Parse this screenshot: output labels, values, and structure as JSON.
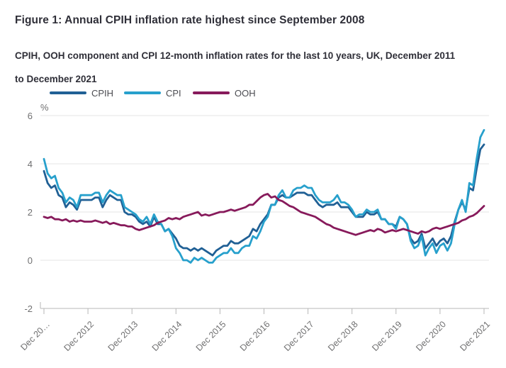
{
  "header": {
    "title": "Figure 1: Annual CPIH inflation rate highest since September 2008",
    "subtitle": "CPIH, OOH component and CPI 12-month inflation rates for the last 10 years, UK, December 2011 to December 2021"
  },
  "colors": {
    "cpih": "#206095",
    "cpi": "#27A0CC",
    "ooh": "#871A5B",
    "axis_text": "#707071",
    "gridline": "#e6e6e6",
    "axis_line": "#b7b7b7",
    "heading_text": "#2f2f38"
  },
  "chart_data": {
    "type": "line",
    "title": "Figure 1: Annual CPIH inflation rate highest since September 2008",
    "subtitle": "CPIH, OOH component and CPI 12-month inflation rates for the last 10 years, UK, December 2011 to December 2021",
    "unit_label": "%",
    "xlabel": "",
    "ylabel": "%",
    "ylim": [
      -2,
      6
    ],
    "y_ticks": [
      6,
      4,
      2,
      0,
      -2
    ],
    "grid": "horizontal",
    "legend_position": "top",
    "x_start": "Dec 2011",
    "x_end": "Dec 2021",
    "frequency": "monthly",
    "x_tick_labels": [
      "Dec 20…",
      "Dec 2012",
      "Dec 2013",
      "Dec 2014",
      "Dec 2015",
      "Dec 2016",
      "Dec 2017",
      "Dec 2018",
      "Dec 2019",
      "Dec 2020",
      "Dec 2021"
    ],
    "series": [
      {
        "name": "CPIH",
        "color": "#206095",
        "values": [
          3.7,
          3.2,
          3.0,
          3.1,
          2.7,
          2.6,
          2.2,
          2.4,
          2.3,
          2.1,
          2.5,
          2.5,
          2.5,
          2.5,
          2.6,
          2.6,
          2.2,
          2.5,
          2.7,
          2.6,
          2.5,
          2.5,
          2.0,
          1.9,
          1.9,
          1.8,
          1.6,
          1.5,
          1.6,
          1.4,
          1.8,
          1.5,
          1.5,
          1.2,
          1.3,
          1.1,
          0.9,
          0.6,
          0.5,
          0.5,
          0.4,
          0.5,
          0.4,
          0.5,
          0.4,
          0.3,
          0.2,
          0.4,
          0.5,
          0.6,
          0.6,
          0.8,
          0.7,
          0.7,
          0.8,
          0.9,
          1.0,
          1.3,
          1.2,
          1.5,
          1.7,
          1.9,
          2.3,
          2.3,
          2.6,
          2.7,
          2.6,
          2.6,
          2.7,
          2.8,
          2.8,
          2.8,
          2.7,
          2.7,
          2.5,
          2.3,
          2.2,
          2.3,
          2.3,
          2.3,
          2.4,
          2.2,
          2.2,
          2.2,
          2.0,
          1.8,
          1.8,
          1.8,
          2.0,
          1.9,
          1.9,
          2.0,
          1.7,
          1.7,
          1.5,
          1.5,
          1.4,
          1.8,
          1.7,
          1.5,
          0.9,
          0.7,
          0.8,
          1.1,
          0.5,
          0.7,
          0.9,
          0.6,
          0.8,
          0.9,
          0.7,
          1.0,
          1.6,
          2.1,
          2.4,
          2.1,
          3.0,
          2.9,
          3.8,
          4.6,
          4.8
        ]
      },
      {
        "name": "CPI",
        "color": "#27A0CC",
        "values": [
          4.2,
          3.6,
          3.4,
          3.5,
          3.0,
          2.8,
          2.4,
          2.6,
          2.5,
          2.2,
          2.7,
          2.7,
          2.7,
          2.7,
          2.8,
          2.8,
          2.4,
          2.7,
          2.9,
          2.8,
          2.7,
          2.7,
          2.2,
          2.1,
          2.0,
          1.9,
          1.7,
          1.6,
          1.8,
          1.5,
          1.9,
          1.6,
          1.5,
          1.2,
          1.3,
          1.0,
          0.5,
          0.3,
          0.0,
          0.0,
          -0.1,
          0.1,
          0.0,
          0.1,
          0.0,
          -0.1,
          -0.1,
          0.1,
          0.2,
          0.3,
          0.3,
          0.5,
          0.3,
          0.3,
          0.5,
          0.6,
          0.6,
          1.0,
          0.9,
          1.2,
          1.6,
          1.8,
          2.3,
          2.3,
          2.7,
          2.9,
          2.6,
          2.6,
          2.9,
          3.0,
          3.0,
          3.1,
          3.0,
          3.0,
          2.7,
          2.5,
          2.4,
          2.4,
          2.4,
          2.5,
          2.7,
          2.4,
          2.4,
          2.3,
          2.1,
          1.8,
          1.9,
          1.9,
          2.1,
          2.0,
          2.0,
          2.1,
          1.7,
          1.7,
          1.5,
          1.5,
          1.3,
          1.8,
          1.7,
          1.5,
          0.8,
          0.5,
          0.6,
          1.0,
          0.2,
          0.5,
          0.7,
          0.3,
          0.6,
          0.7,
          0.4,
          0.7,
          1.5,
          2.1,
          2.5,
          2.0,
          3.2,
          3.1,
          4.2,
          5.1,
          5.4
        ]
      },
      {
        "name": "OOH",
        "color": "#871A5B",
        "values": [
          1.8,
          1.75,
          1.8,
          1.7,
          1.7,
          1.65,
          1.7,
          1.6,
          1.65,
          1.6,
          1.65,
          1.6,
          1.6,
          1.6,
          1.65,
          1.6,
          1.55,
          1.6,
          1.5,
          1.55,
          1.5,
          1.45,
          1.45,
          1.4,
          1.4,
          1.3,
          1.25,
          1.3,
          1.35,
          1.4,
          1.45,
          1.55,
          1.6,
          1.65,
          1.75,
          1.7,
          1.75,
          1.7,
          1.8,
          1.85,
          1.9,
          1.95,
          2.0,
          1.85,
          1.9,
          1.85,
          1.9,
          1.95,
          2.0,
          2.0,
          2.05,
          2.1,
          2.05,
          2.1,
          2.15,
          2.2,
          2.3,
          2.3,
          2.45,
          2.6,
          2.7,
          2.75,
          2.6,
          2.65,
          2.5,
          2.45,
          2.35,
          2.25,
          2.2,
          2.1,
          2.0,
          1.95,
          1.9,
          1.85,
          1.8,
          1.7,
          1.6,
          1.5,
          1.45,
          1.35,
          1.3,
          1.25,
          1.2,
          1.15,
          1.1,
          1.05,
          1.1,
          1.15,
          1.2,
          1.25,
          1.2,
          1.3,
          1.25,
          1.15,
          1.2,
          1.25,
          1.2,
          1.25,
          1.3,
          1.25,
          1.2,
          1.15,
          1.1,
          1.2,
          1.15,
          1.2,
          1.3,
          1.35,
          1.3,
          1.35,
          1.4,
          1.45,
          1.5,
          1.55,
          1.65,
          1.7,
          1.8,
          1.85,
          1.95,
          2.1,
          2.25
        ]
      }
    ]
  }
}
